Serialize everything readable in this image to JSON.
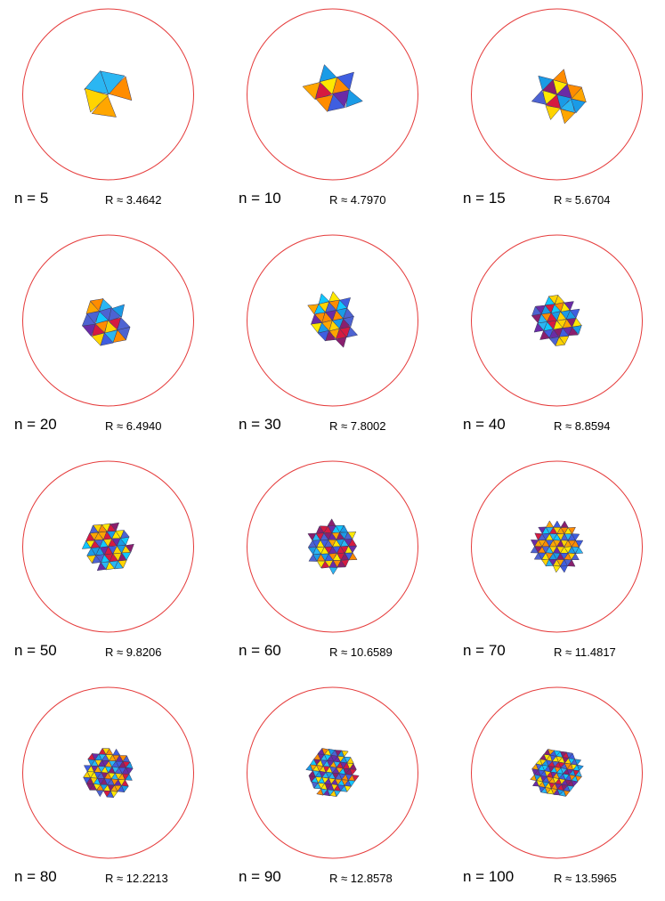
{
  "palette": [
    "#ffa600",
    "#ffe800",
    "#1a9be6",
    "#2bb6f2",
    "#4d63d2",
    "#6b2ba6",
    "#8a1f6e",
    "#d61a40",
    "#ff8c00",
    "#ffd400",
    "#11c7ff",
    "#3f5ee0"
  ],
  "circle_color": "#e53b3b",
  "edge_color": "#3a3a5a",
  "panels": [
    {
      "n": 5,
      "n_label": "n = 5",
      "r_label": "R ≈ 3.4642",
      "R": 3.4642
    },
    {
      "n": 10,
      "n_label": "n = 10",
      "r_label": "R ≈ 4.7970",
      "R": 4.797
    },
    {
      "n": 15,
      "n_label": "n = 15",
      "r_label": "R ≈ 5.6704",
      "R": 5.6704
    },
    {
      "n": 20,
      "n_label": "n = 20",
      "r_label": "R ≈ 6.4940",
      "R": 6.494
    },
    {
      "n": 30,
      "n_label": "n = 30",
      "r_label": "R ≈ 7.8002",
      "R": 7.8002
    },
    {
      "n": 40,
      "n_label": "n = 40",
      "r_label": "R ≈ 8.8594",
      "R": 8.8594
    },
    {
      "n": 50,
      "n_label": "n = 50",
      "r_label": "R ≈ 9.8206",
      "R": 9.8206
    },
    {
      "n": 60,
      "n_label": "n = 60",
      "r_label": "R ≈ 10.6589",
      "R": 10.6589
    },
    {
      "n": 70,
      "n_label": "n = 70",
      "r_label": "R ≈ 11.4817",
      "R": 11.4817
    },
    {
      "n": 80,
      "n_label": "n = 80",
      "r_label": "R ≈ 12.2213",
      "R": 12.2213
    },
    {
      "n": 90,
      "n_label": "n = 90",
      "r_label": "R ≈ 12.8578",
      "R": 12.8578
    },
    {
      "n": 100,
      "n_label": "n = 100",
      "r_label": "R ≈ 13.5965",
      "R": 13.5965
    }
  ]
}
